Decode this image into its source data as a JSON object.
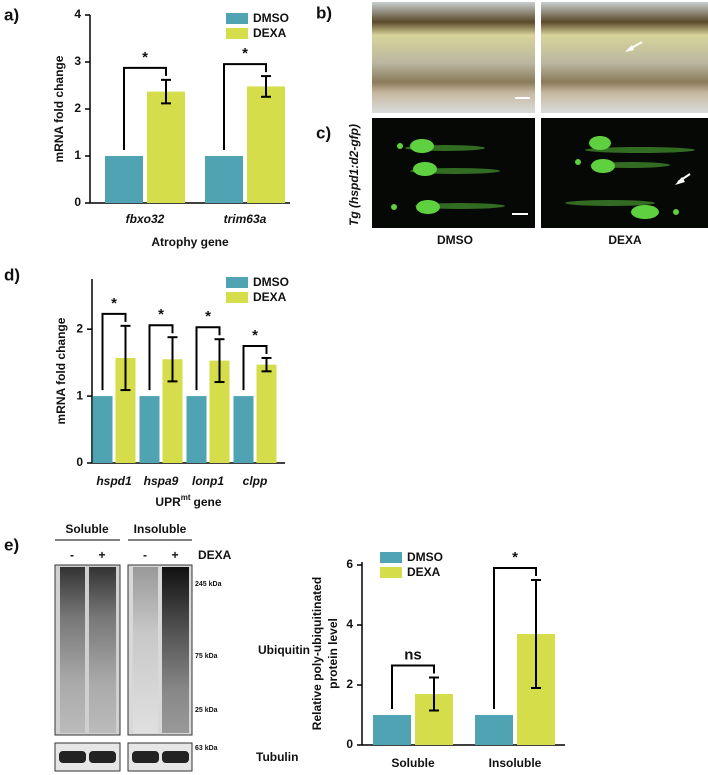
{
  "chart_data": [
    {
      "type": "bar",
      "ylabel": "mRNA fold change",
      "xlabel": "Atrophy gene",
      "categories": [
        "fbxo32",
        "trim63a"
      ],
      "series": [
        {
          "name": "DMSO",
          "color": "#4fa3b3",
          "values": [
            1,
            1
          ]
        },
        {
          "name": "DEXA",
          "color": "#d5dd4a",
          "values": [
            2.37,
            2.48
          ],
          "errors": [
            0.25,
            0.22
          ]
        }
      ],
      "annotations": [
        "*",
        "*"
      ],
      "ylim": [
        0,
        4
      ],
      "yticks": [
        0,
        1,
        2,
        3,
        4
      ]
    },
    {
      "type": "bar",
      "ylabel": "mRNA fold change",
      "xlabel": [
        "UPR",
        "mt",
        "gene"
      ],
      "categories": [
        "hspd1",
        "hspa9",
        "lonp1",
        "clpp"
      ],
      "series": [
        {
          "name": "DMSO",
          "color": "#4fa3b3",
          "values": [
            1,
            1,
            1,
            1
          ]
        },
        {
          "name": "DEXA",
          "color": "#d5dd4a",
          "values": [
            1.57,
            1.55,
            1.53,
            1.47
          ],
          "errors": [
            0.48,
            0.33,
            0.32,
            0.1
          ]
        }
      ],
      "annotations": [
        "*",
        "*",
        "*",
        "*"
      ],
      "ylim": [
        0,
        2.75
      ],
      "yticks": [
        0,
        1,
        2
      ]
    },
    {
      "type": "bar",
      "ylabel": [
        "Relative poly-ubiquitinated",
        "protein level"
      ],
      "categories": [
        "Soluble",
        "Insoluble"
      ],
      "series": [
        {
          "name": "DMSO",
          "color": "#4fa3b3",
          "values": [
            1,
            1
          ]
        },
        {
          "name": "DEXA",
          "color": "#d5dd4a",
          "values": [
            1.7,
            3.7
          ],
          "errors": [
            0.55,
            1.8
          ]
        }
      ],
      "annotations": [
        "ns",
        "*"
      ],
      "ylim": [
        0,
        6.1
      ],
      "yticks": [
        0,
        2,
        4,
        6
      ]
    }
  ],
  "panel_labels": [
    "a)",
    "b)",
    "c)",
    "d)",
    "e)"
  ],
  "image_panels": {
    "row_label": "Tg (hspd1:d2-gfp)",
    "columns": [
      "DMSO",
      "DEXA"
    ]
  },
  "blot": {
    "groups": [
      "Soluble",
      "Insoluble"
    ],
    "lanes": [
      "-",
      "+",
      "-",
      "+"
    ],
    "treatment": "DEXA",
    "markers": [
      "245 kDa",
      "75 kDa",
      "25 kDa",
      "63 kDa"
    ],
    "proteins": [
      "Ubiquitin",
      "Tubulin"
    ]
  }
}
